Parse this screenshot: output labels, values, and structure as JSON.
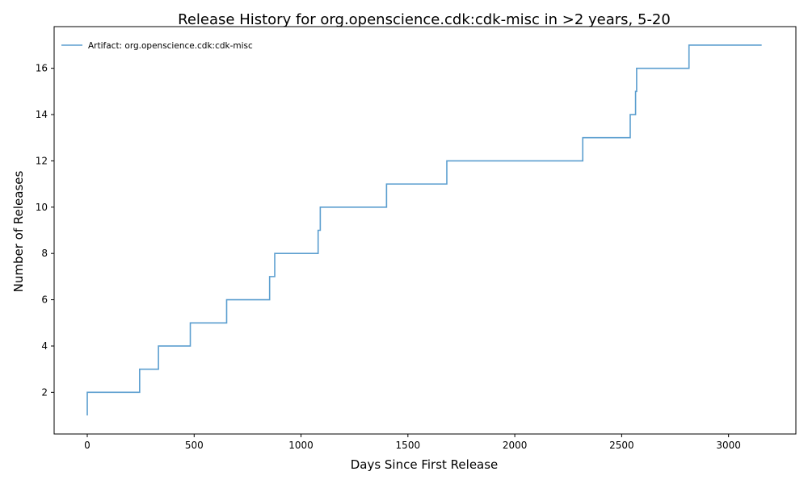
{
  "chart_data": {
    "type": "line",
    "drawstyle": "steps-post",
    "title": "Release History for org.openscience.cdk:cdk-misc in >2 years, 5-20",
    "xlabel": "Days Since First Release",
    "ylabel": "Number of Releases",
    "xlim": [
      -155,
      3315
    ],
    "ylim": [
      0.2,
      17.8
    ],
    "xticks": [
      0,
      500,
      1000,
      1500,
      2000,
      2500,
      3000
    ],
    "yticks": [
      2,
      4,
      6,
      8,
      10,
      12,
      14,
      16
    ],
    "grid": false,
    "legend_position": "top-left",
    "series": [
      {
        "name": "Artifact: org.openscience.cdk:cdk-misc",
        "color": "#5b9ecf",
        "points": [
          [
            0,
            1
          ],
          [
            0,
            2
          ],
          [
            245,
            3
          ],
          [
            333,
            4
          ],
          [
            482,
            5
          ],
          [
            652,
            6
          ],
          [
            853,
            7
          ],
          [
            877,
            8
          ],
          [
            1080,
            9
          ],
          [
            1090,
            10
          ],
          [
            1400,
            11
          ],
          [
            1682,
            12
          ],
          [
            2318,
            13
          ],
          [
            2540,
            14
          ],
          [
            2565,
            15
          ],
          [
            2570,
            16
          ],
          [
            2815,
            17
          ],
          [
            3155,
            17
          ]
        ]
      }
    ]
  }
}
